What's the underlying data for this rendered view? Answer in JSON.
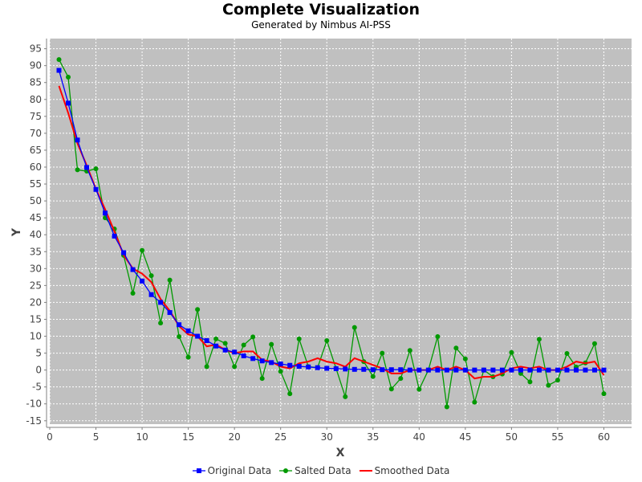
{
  "chart_data": {
    "type": "line",
    "title": "Complete Visualization",
    "subtitle": "Generated by Nimbus AI-PSS",
    "xlabel": "X",
    "ylabel": "Y",
    "xlim": [
      0,
      63
    ],
    "ylim": [
      -16,
      98
    ],
    "xticks": [
      0,
      5,
      10,
      15,
      20,
      25,
      30,
      35,
      40,
      45,
      50,
      55,
      60
    ],
    "yticks": [
      -15,
      -10,
      -5,
      0,
      5,
      10,
      15,
      20,
      25,
      30,
      35,
      40,
      45,
      50,
      55,
      60,
      65,
      70,
      75,
      80,
      85,
      90,
      95
    ],
    "grid": true,
    "legend_position": "bottom-center",
    "plot_background": "#c0c0c0",
    "x": [
      1,
      2,
      3,
      4,
      5,
      6,
      7,
      8,
      9,
      10,
      11,
      12,
      13,
      14,
      15,
      16,
      17,
      18,
      19,
      20,
      21,
      22,
      23,
      24,
      25,
      26,
      27,
      28,
      29,
      30,
      31,
      32,
      33,
      34,
      35,
      36,
      37,
      38,
      39,
      40,
      41,
      42,
      43,
      44,
      45,
      46,
      47,
      48,
      49,
      50,
      51,
      52,
      53,
      54,
      55,
      56,
      57,
      58,
      59,
      60
    ],
    "series": [
      {
        "name": "Original Data",
        "color": "#0000ff",
        "marker": "square",
        "values": [
          88.6,
          78.9,
          68.0,
          59.9,
          53.4,
          46.4,
          39.6,
          34.7,
          29.7,
          26.3,
          22.3,
          20.0,
          17.0,
          13.4,
          11.6,
          10.0,
          8.7,
          7.1,
          5.9,
          5.3,
          4.2,
          3.4,
          2.7,
          2.2,
          1.8,
          1.4,
          1.1,
          0.9,
          0.7,
          0.5,
          0.4,
          0.3,
          0.2,
          0.2,
          0.1,
          0.1,
          0.1,
          0.1,
          0,
          0,
          0,
          0,
          0,
          0,
          0,
          0,
          0,
          0,
          0,
          0,
          0,
          0,
          0,
          0,
          0,
          0,
          0,
          0,
          0,
          0
        ]
      },
      {
        "name": "Salted Data",
        "color": "#009900",
        "marker": "circle",
        "values": [
          91.8,
          86.6,
          59.2,
          58.8,
          59.5,
          45.0,
          41.7,
          33.9,
          22.7,
          35.4,
          27.9,
          13.9,
          26.6,
          9.9,
          3.8,
          17.9,
          1.0,
          9.2,
          7.9,
          1.0,
          7.4,
          9.8,
          -2.5,
          7.6,
          -0.4,
          -7.0,
          9.2,
          1.0,
          0.7,
          8.7,
          0.5,
          -7.9,
          12.6,
          2.5,
          -1.9,
          5.0,
          -5.6,
          -2.5,
          5.8,
          -5.7,
          0.0,
          9.9,
          -10.9,
          6.5,
          3.3,
          -9.5,
          0.0,
          -2.0,
          -1.2,
          5.2,
          -1.0,
          -3.5,
          9.1,
          -4.5,
          -3.0,
          4.9,
          0.9,
          2.1,
          7.8,
          -7.0
        ]
      },
      {
        "name": "Smoothed Data",
        "color": "#ff0000",
        "marker": "none",
        "values": [
          84.0,
          76.0,
          67.0,
          60.5,
          53.5,
          47.5,
          41.0,
          34.0,
          30.0,
          28.5,
          26.0,
          21.0,
          17.5,
          13.0,
          10.5,
          10.0,
          7.0,
          7.5,
          6.0,
          5.0,
          5.5,
          5.5,
          3.0,
          2.5,
          1.0,
          0.5,
          2.0,
          2.5,
          3.5,
          2.5,
          2.0,
          1.0,
          3.5,
          2.5,
          1.5,
          0.5,
          -1.0,
          -1.0,
          0.0,
          0.0,
          0.0,
          1.0,
          0.0,
          1.0,
          0.0,
          -2.5,
          -2.0,
          -2.0,
          -1.0,
          0.5,
          1.0,
          0.5,
          1.0,
          0.0,
          0.0,
          1.0,
          2.5,
          2.0,
          2.5,
          -1.5
        ]
      }
    ]
  }
}
